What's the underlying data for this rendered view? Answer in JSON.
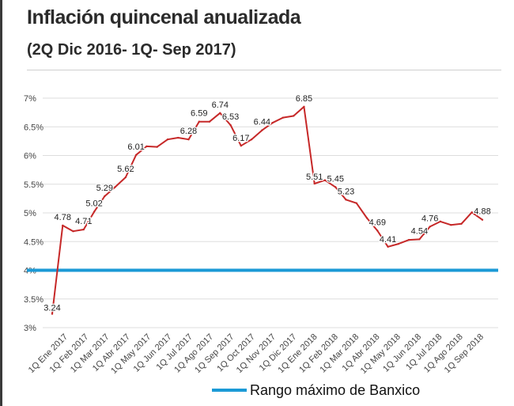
{
  "title": "Inflación quincenal anualizada",
  "subtitle": "(2Q Dic 2016- 1Q- Sep 2017)",
  "legend": {
    "label": "Rango máximo de Banxico"
  },
  "colors": {
    "series": "#c62828",
    "reference": "#1b9ad6",
    "grid": "#dddddd",
    "text": "#444444"
  },
  "chart_data": {
    "type": "line",
    "title": "Inflación quincenal anualizada",
    "subtitle": "(2Q Dic 2016- 1Q- Sep 2017)",
    "xlabel": "",
    "ylabel": "",
    "ylim": [
      3,
      7
    ],
    "y_ticks": [
      {
        "value": 7,
        "label": "7%"
      },
      {
        "value": 6.5,
        "label": "6.5%"
      },
      {
        "value": 6,
        "label": "6%"
      },
      {
        "value": 5.5,
        "label": "5.5%"
      },
      {
        "value": 5,
        "label": "5%"
      },
      {
        "value": 4.5,
        "label": "4.5%"
      },
      {
        "value": 4,
        "label": "4%"
      },
      {
        "value": 3.5,
        "label": "3.5%"
      },
      {
        "value": 3,
        "label": "3%"
      }
    ],
    "grid": "horizontal",
    "x_tick_labels": [
      "1Q Ene 2017",
      "1Q Feb 2017",
      "1Q Mar 2017",
      "1Q Abr 2017",
      "1Q May 2017",
      "1Q Jun 2017",
      "1Q Jul 2017",
      "1Q Ago 2017",
      "1Q Sep 2017",
      "1Q Oct 2017",
      "1Q Nov 2017",
      "1Q Dic 2017",
      "1Q Ene 2018",
      "1Q Feb 2018",
      "1Q Mar 2018",
      "1Q Abr 2018",
      "1Q May 2018",
      "1Q Jun 2018",
      "1Q Jul 2018",
      "1Q Ago 2018",
      "1Q Sep 2018"
    ],
    "series": [
      {
        "values": [
          3.24,
          4.78,
          4.68,
          4.71,
          5.02,
          5.29,
          5.45,
          5.62,
          6.01,
          6.16,
          6.15,
          6.28,
          6.31,
          6.28,
          6.59,
          6.59,
          6.74,
          6.53,
          6.17,
          6.28,
          6.44,
          6.57,
          6.66,
          6.69,
          6.85,
          5.51,
          5.57,
          5.45,
          5.23,
          5.17,
          4.91,
          4.69,
          4.41,
          4.46,
          4.53,
          4.54,
          4.76,
          4.85,
          4.79,
          4.81,
          5.01,
          4.88
        ],
        "data_labels": [
          {
            "index": 0,
            "label": "3.24"
          },
          {
            "index": 1,
            "label": "4.78"
          },
          {
            "index": 3,
            "label": "4.71"
          },
          {
            "index": 4,
            "label": "5.02"
          },
          {
            "index": 5,
            "label": "5.29"
          },
          {
            "index": 7,
            "label": "5.62"
          },
          {
            "index": 8,
            "label": "6.01"
          },
          {
            "index": 13,
            "label": "6.28"
          },
          {
            "index": 14,
            "label": "6.59"
          },
          {
            "index": 16,
            "label": "6.74"
          },
          {
            "index": 17,
            "label": "6.53"
          },
          {
            "index": 18,
            "label": "6.17"
          },
          {
            "index": 20,
            "label": "6.44"
          },
          {
            "index": 24,
            "label": "6.85"
          },
          {
            "index": 25,
            "label": "5.51"
          },
          {
            "index": 27,
            "label": "5.45"
          },
          {
            "index": 28,
            "label": "5.23"
          },
          {
            "index": 31,
            "label": "4.69"
          },
          {
            "index": 32,
            "label": "4.41"
          },
          {
            "index": 35,
            "label": "4.54"
          },
          {
            "index": 36,
            "label": "4.76"
          },
          {
            "index": 41,
            "label": "4.88"
          }
        ]
      }
    ],
    "reference_line": {
      "value": 4,
      "label": "Rango máximo de Banxico"
    },
    "legend_position": "bottom"
  }
}
